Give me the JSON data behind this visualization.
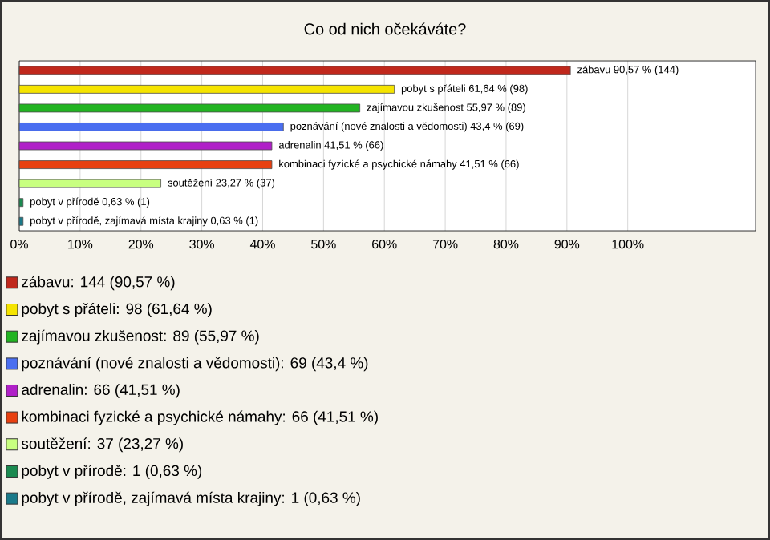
{
  "chart_data": {
    "type": "bar",
    "orientation": "horizontal",
    "title": "Co od nich očekáváte?",
    "categories": [
      null,
      null,
      null,
      null,
      null,
      null,
      null,
      null,
      null
    ],
    "series": [
      {
        "name": "zábavu: 144 (90,57 %)",
        "color": "#c0281c",
        "values": [
          90.57,
          null,
          null,
          null,
          null,
          null,
          null,
          null,
          null
        ],
        "value_labels": [
          "zábavu 90,57 % (144)",
          null,
          null,
          null,
          null,
          null,
          null,
          null,
          null
        ]
      },
      {
        "name": "pobyt s přáteli: 98 (61,64 %)",
        "color": "#f5e400",
        "values": [
          null,
          61.64,
          null,
          null,
          null,
          null,
          null,
          null,
          null
        ],
        "value_labels": [
          null,
          "pobyt s přáteli 61,64 % (98)",
          null,
          null,
          null,
          null,
          null,
          null,
          null
        ]
      },
      {
        "name": "zajímavou zkušenost: 89 (55,97 %)",
        "color": "#22b422",
        "values": [
          null,
          null,
          55.97,
          null,
          null,
          null,
          null,
          null,
          null
        ],
        "value_labels": [
          null,
          null,
          "zajímavou zkušenost 55,97 % (89)",
          null,
          null,
          null,
          null,
          null,
          null
        ]
      },
      {
        "name": "poznávání (nové znalosti a vědomosti): 69 (43,4 %)",
        "color": "#4a6ef0",
        "values": [
          null,
          null,
          null,
          43.4,
          null,
          null,
          null,
          null,
          null
        ],
        "value_labels": [
          null,
          null,
          null,
          "poznávání (nové znalosti a vědomosti) 43,4 % (69)",
          null,
          null,
          null,
          null,
          null
        ]
      },
      {
        "name": "adrenalin: 66 (41,51 %)",
        "color": "#b020c8",
        "values": [
          null,
          null,
          null,
          null,
          41.51,
          null,
          null,
          null,
          null
        ],
        "value_labels": [
          null,
          null,
          null,
          null,
          "adrenalin 41,51 % (66)",
          null,
          null,
          null,
          null
        ]
      },
      {
        "name": "kombinaci fyzické a psychické námahy: 66 (41,51 %)",
        "color": "#e84010",
        "values": [
          null,
          null,
          null,
          null,
          null,
          41.51,
          null,
          null,
          null
        ],
        "value_labels": [
          null,
          null,
          null,
          null,
          null,
          "kombinaci fyzické a psychické námahy 41,51 % (66)",
          null,
          null,
          null
        ]
      },
      {
        "name": "soutěžení: 37 (23,27 %)",
        "color": "#c8ff80",
        "values": [
          null,
          null,
          null,
          null,
          null,
          null,
          23.27,
          null,
          null
        ],
        "value_labels": [
          null,
          null,
          null,
          null,
          null,
          null,
          "soutěžení 23,27 % (37)",
          null,
          null
        ]
      },
      {
        "name": "pobyt v přírodě: 1 (0,63 %)",
        "color": "#1a8a50",
        "values": [
          null,
          null,
          null,
          null,
          null,
          null,
          null,
          0.63,
          null
        ],
        "value_labels": [
          null,
          null,
          null,
          null,
          null,
          null,
          null,
          "pobyt v přírodě 0,63 % (1)",
          null
        ]
      },
      {
        "name": "pobyt v přírodě, zajímavá místa krajiny: 1 (0,63 %)",
        "color": "#1a7a8a",
        "values": [
          null,
          null,
          null,
          null,
          null,
          null,
          null,
          null,
          0.63
        ],
        "value_labels": [
          null,
          null,
          null,
          null,
          null,
          null,
          null,
          null,
          "pobyt v přírodě, zajímavá místa krajiny 0,63 % (1)"
        ]
      }
    ],
    "xlim": [
      0,
      121
    ],
    "xticks": [
      {
        "value": 0,
        "label": "0%"
      },
      {
        "value": 10,
        "label": "10%"
      },
      {
        "value": 20,
        "label": "20%"
      },
      {
        "value": 30,
        "label": "30%"
      },
      {
        "value": 40,
        "label": "40%"
      },
      {
        "value": 50,
        "label": "50%"
      },
      {
        "value": 60,
        "label": "60%"
      },
      {
        "value": 70,
        "label": "70%"
      },
      {
        "value": 80,
        "label": "80%"
      },
      {
        "value": 90,
        "label": "90%"
      },
      {
        "value": 100,
        "label": "100%"
      }
    ],
    "grid": "x",
    "legend": "bottom"
  }
}
